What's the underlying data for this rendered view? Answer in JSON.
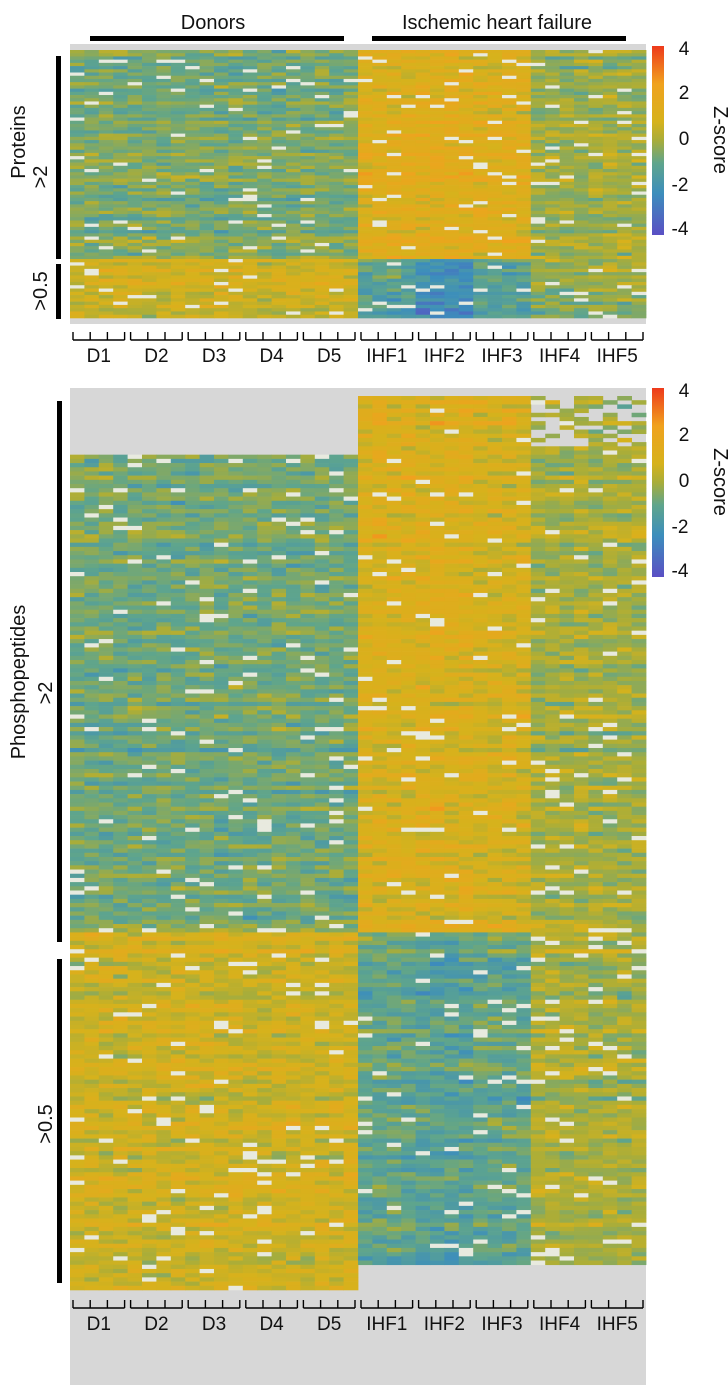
{
  "groups": {
    "donors_label": "Donors",
    "ihf_label": "Ischemic heart failure"
  },
  "samples": [
    "D1",
    "D2",
    "D3",
    "D4",
    "D5",
    "IHF1",
    "IHF2",
    "IHF3",
    "IHF4",
    "IHF5"
  ],
  "replicates_per_sample": 4,
  "colorbar": {
    "title": "Z-score",
    "ticks": [
      "4",
      "2",
      "0",
      "-2",
      "-4"
    ],
    "stops": [
      "#ee3a1c",
      "#f0a21e",
      "#d6b21c",
      "#a8ad3a",
      "#5fa58c",
      "#3c8ebc",
      "#5a4fc4"
    ],
    "missing_color": "#d7d7d7"
  },
  "chart_data": [
    {
      "type": "heatmap",
      "title": "",
      "ylabel": "Proteins",
      "xlabel": "",
      "value_range": [
        -4,
        4
      ],
      "clusters": [
        {
          "label": ">2",
          "share": 0.78,
          "donor_mean_z": -0.6,
          "ihf_mean_z": [
            1.2,
            1.3,
            1.2,
            -0.2,
            -0.1
          ]
        },
        {
          "label": ">0.5",
          "share": 0.22,
          "donor_mean_z": 0.7,
          "ihf_mean_z": [
            -1.2,
            -2.2,
            -1.2,
            -0.3,
            -0.2
          ]
        }
      ]
    },
    {
      "type": "heatmap",
      "title": "",
      "ylabel": "Phosphopeptides",
      "xlabel": "",
      "value_range": [
        -4,
        4
      ],
      "clusters": [
        {
          "label": ">2",
          "share": 0.6,
          "donor_mean_z": -0.7,
          "ihf_mean_z": [
            1.0,
            1.1,
            0.9,
            0.0,
            0.0
          ]
        },
        {
          "label": ">0.5",
          "share": 0.4,
          "donor_mean_z": 0.7,
          "ihf_mean_z": [
            -1.0,
            -1.2,
            -1.0,
            0.1,
            0.0
          ]
        }
      ]
    }
  ]
}
